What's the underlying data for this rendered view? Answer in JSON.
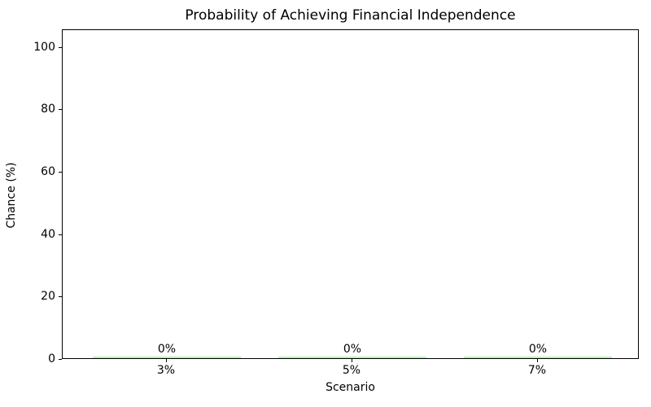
{
  "chart_data": {
    "type": "bar",
    "title": "Probability of Achieving Financial Independence",
    "xlabel": "Scenario",
    "ylabel": "Chance (%)",
    "categories": [
      "3%",
      "5%",
      "7%"
    ],
    "values": [
      0,
      0,
      0
    ],
    "bar_value_labels": [
      "0%",
      "0%",
      "0%"
    ],
    "yticks": [
      0,
      20,
      40,
      60,
      80,
      100
    ],
    "ylim": [
      0,
      105.7
    ],
    "grid": false,
    "legend": null,
    "colors": {
      "bar": "#90ee90",
      "text": "#000000",
      "spine": "#000000",
      "background": "#ffffff"
    }
  }
}
